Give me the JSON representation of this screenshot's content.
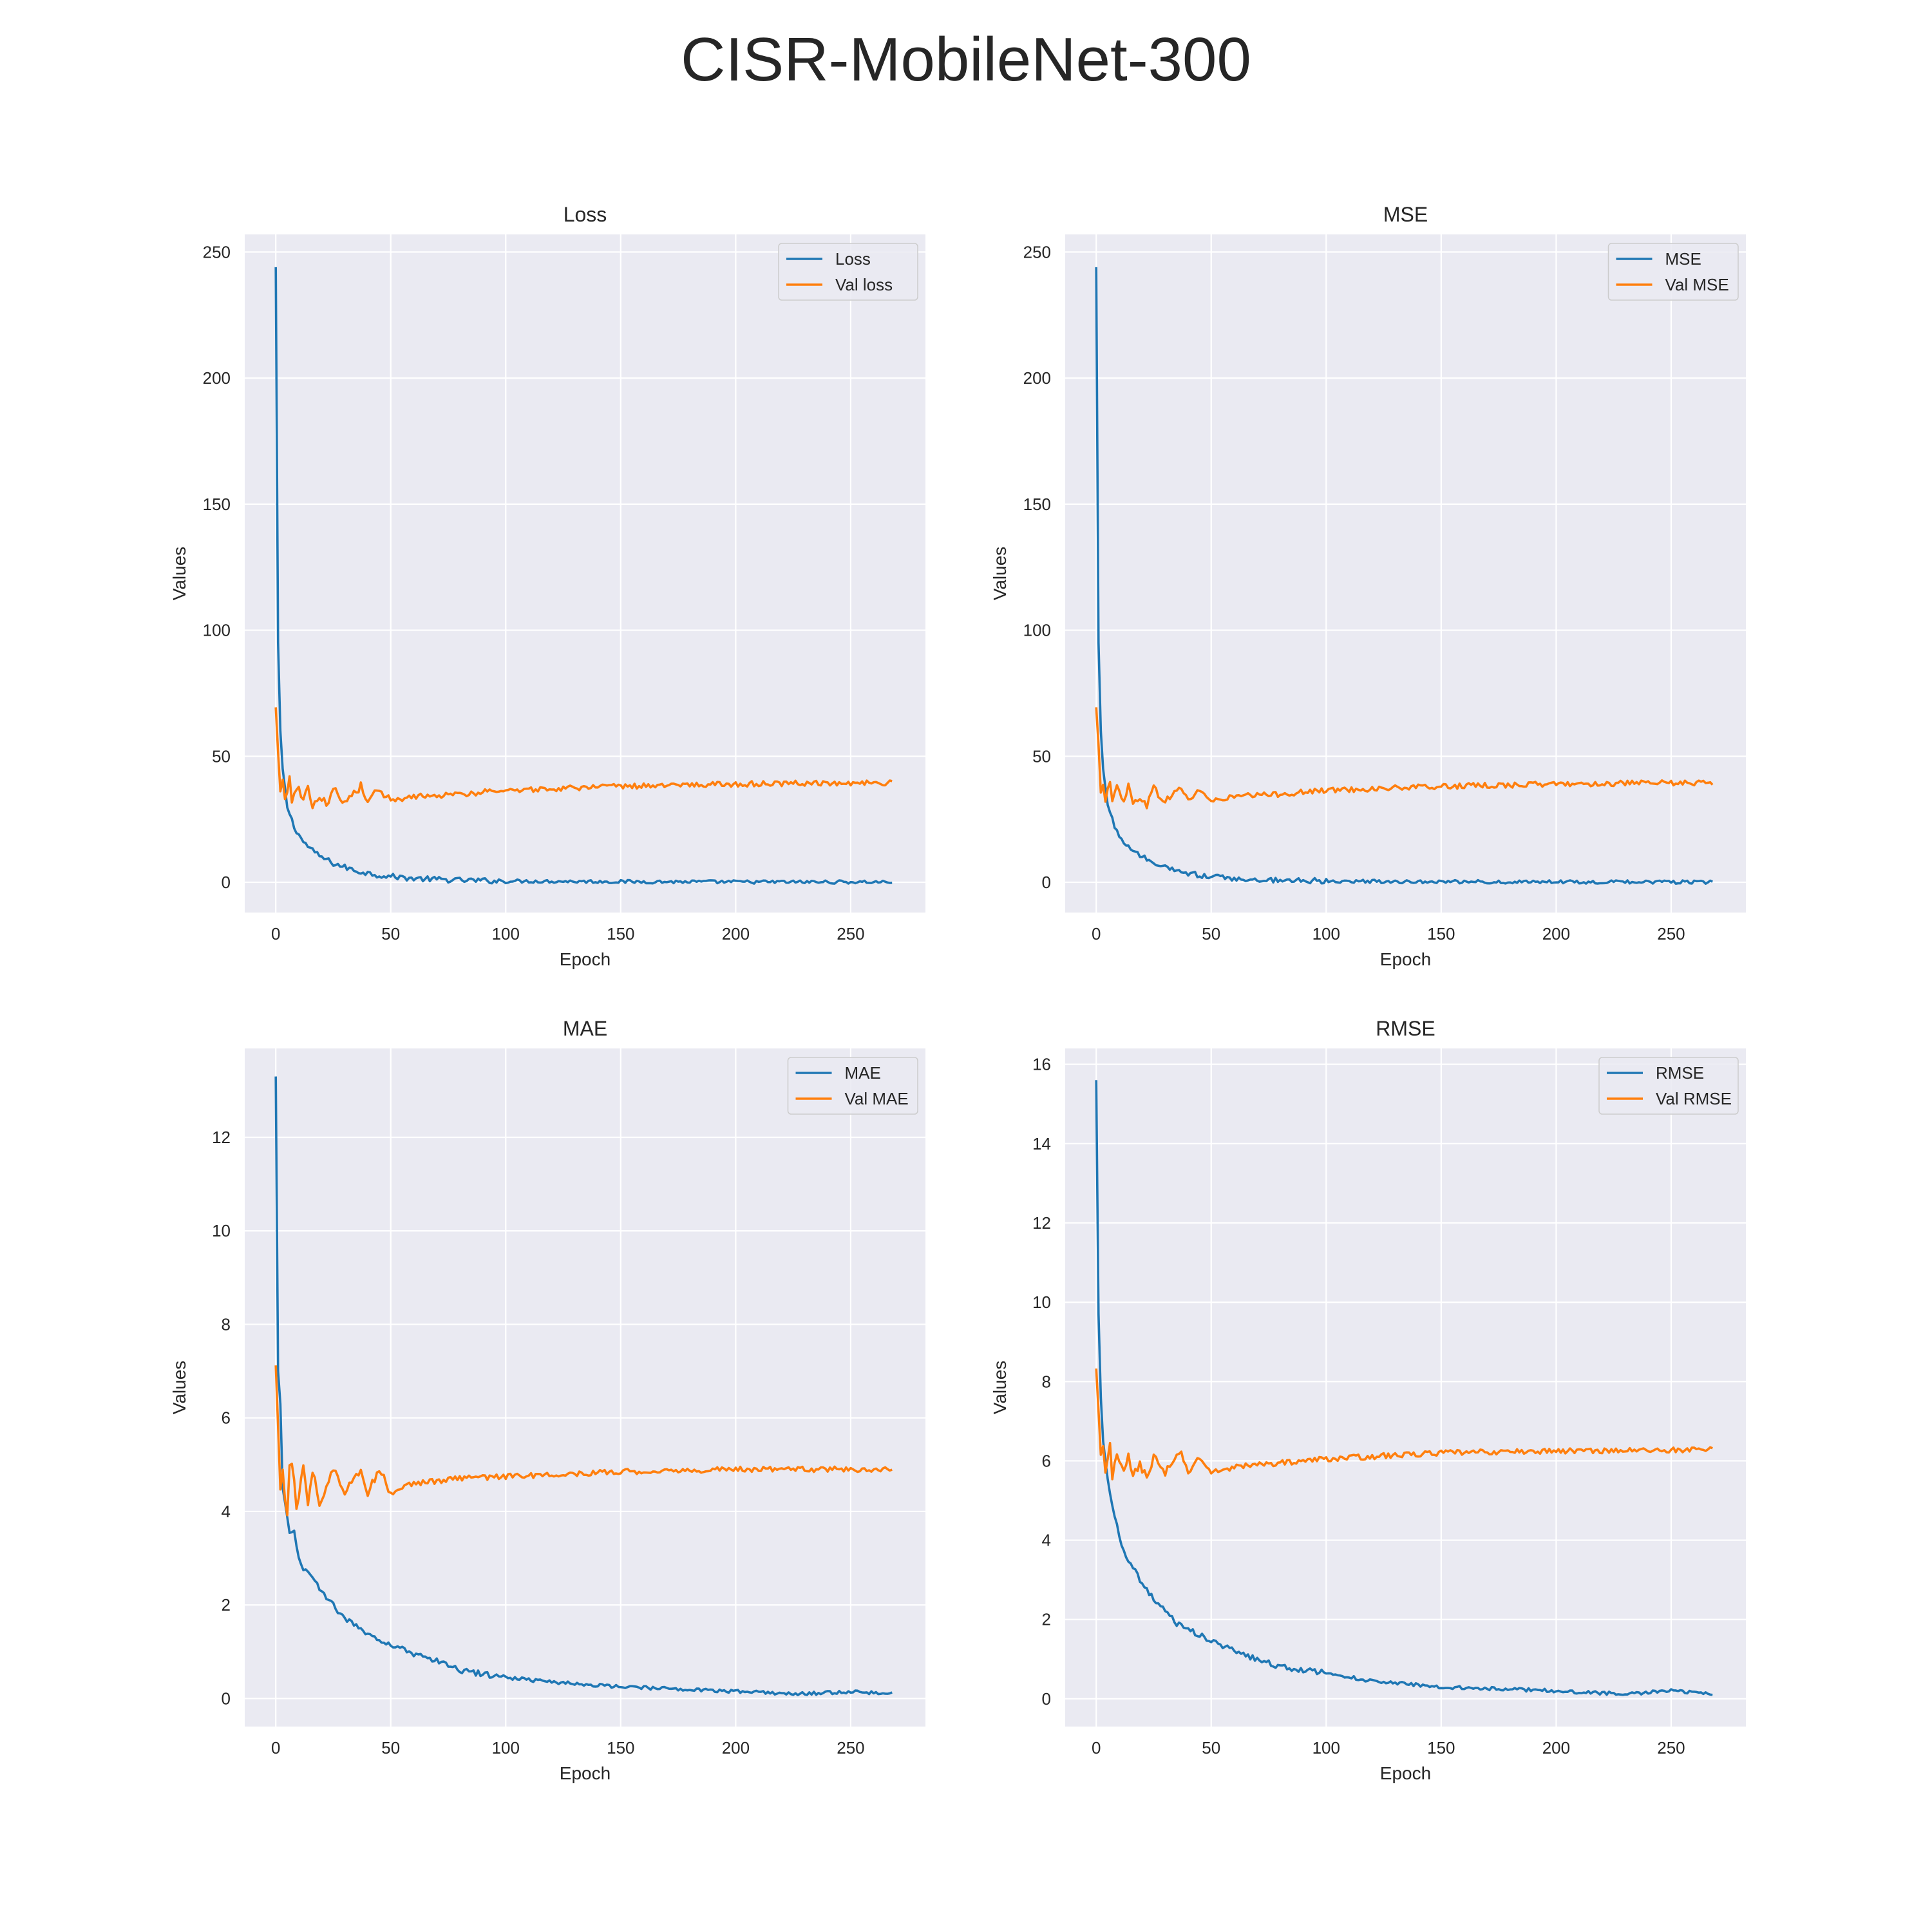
{
  "figure": {
    "title": "CISR-MobileNet-300"
  },
  "chart_data": [
    {
      "type": "line",
      "title": "Loss",
      "xlabel": "Epoch",
      "ylabel": "Values",
      "xlim": [
        -13.5,
        282.5
      ],
      "ylim": [
        -12,
        257
      ],
      "xticks": [
        0,
        50,
        100,
        150,
        200,
        250
      ],
      "yticks": [
        0,
        50,
        100,
        150,
        200,
        250
      ],
      "tick_labels_y": [
        "0",
        "50",
        "100",
        "150",
        "200",
        "250"
      ],
      "grid": true,
      "legend_position": "top-right",
      "series": [
        {
          "name": "Loss",
          "color": "#1f77b4",
          "x_start": 0,
          "x_end": 268,
          "x": [
            0,
            1,
            2,
            3,
            5,
            8,
            12,
            18,
            25,
            35,
            45,
            60,
            80,
            100,
            150,
            200,
            268
          ],
          "y": [
            244,
            95,
            60,
            45,
            30,
            22,
            16,
            11,
            7.5,
            4.5,
            2.8,
            1.5,
            0.8,
            0.5,
            0.25,
            0.15,
            0.1
          ]
        },
        {
          "name": "Val loss",
          "color": "#ff7f0e",
          "x_start": 0,
          "x_end": 268,
          "x": [
            0,
            2,
            3,
            4,
            6,
            7,
            9,
            12,
            14,
            16,
            19,
            22,
            25,
            30,
            37,
            40,
            45,
            50,
            60,
            80,
            100,
            150,
            200,
            268
          ],
          "y": [
            69,
            37,
            40,
            33,
            41,
            31,
            38,
            33,
            38,
            31,
            34,
            31,
            37,
            32,
            38,
            32,
            37,
            32,
            34,
            35,
            36.5,
            38,
            39,
            39.5
          ]
        }
      ]
    },
    {
      "type": "line",
      "title": "MSE",
      "xlabel": "Epoch",
      "ylabel": "Values",
      "xlim": [
        -13.5,
        282.5
      ],
      "ylim": [
        -12,
        257
      ],
      "xticks": [
        0,
        50,
        100,
        150,
        200,
        250
      ],
      "yticks": [
        0,
        50,
        100,
        150,
        200,
        250
      ],
      "tick_labels_y": [
        "0",
        "50",
        "100",
        "150",
        "200",
        "250"
      ],
      "grid": true,
      "legend_position": "top-right",
      "series": [
        {
          "name": "MSE",
          "color": "#1f77b4",
          "x_start": 0,
          "x_end": 268,
          "x": [
            0,
            1,
            2,
            3,
            5,
            8,
            12,
            18,
            25,
            35,
            45,
            60,
            80,
            100,
            150,
            200,
            268
          ],
          "y": [
            244,
            95,
            60,
            45,
            30,
            22,
            16,
            11,
            7.5,
            4.5,
            2.8,
            1.5,
            0.8,
            0.5,
            0.25,
            0.15,
            0.1
          ]
        },
        {
          "name": "Val MSE",
          "color": "#ff7f0e",
          "x_start": 0,
          "x_end": 268,
          "x": [
            0,
            2,
            3,
            4,
            6,
            7,
            9,
            12,
            14,
            16,
            19,
            22,
            25,
            30,
            37,
            40,
            45,
            50,
            60,
            80,
            100,
            150,
            200,
            268
          ],
          "y": [
            69,
            37,
            40,
            33,
            41,
            31,
            38,
            33,
            38,
            31,
            34,
            31,
            37,
            32,
            38,
            32,
            37,
            32,
            34,
            35,
            36.5,
            38,
            39,
            39.5
          ]
        }
      ]
    },
    {
      "type": "line",
      "title": "MAE",
      "xlabel": "Epoch",
      "ylabel": "Values",
      "xlim": [
        -13.5,
        282.5
      ],
      "ylim": [
        -0.6,
        13.9
      ],
      "xticks": [
        0,
        50,
        100,
        150,
        200,
        250
      ],
      "yticks": [
        0,
        2,
        4,
        6,
        8,
        10,
        12
      ],
      "tick_labels_y": [
        "0",
        "2",
        "4",
        "6",
        "8",
        "10",
        "12"
      ],
      "grid": true,
      "legend_position": "top-right",
      "series": [
        {
          "name": "MAE",
          "color": "#1f77b4",
          "x_start": 0,
          "x_end": 268,
          "x": [
            0,
            1,
            2,
            3,
            5,
            6,
            8,
            10,
            12,
            15,
            20,
            25,
            30,
            40,
            50,
            60,
            70,
            80,
            100,
            120,
            150,
            200,
            230,
            250,
            268
          ],
          "y": [
            13.3,
            7.0,
            6.3,
            4.5,
            3.9,
            3.6,
            3.6,
            3.0,
            2.8,
            2.6,
            2.3,
            2.0,
            1.7,
            1.4,
            1.15,
            0.95,
            0.8,
            0.6,
            0.45,
            0.35,
            0.25,
            0.15,
            0.1,
            0.15,
            0.1
          ]
        },
        {
          "name": "Val MAE",
          "color": "#ff7f0e",
          "x_start": 0,
          "x_end": 268,
          "x": [
            0,
            2,
            3,
            4,
            5,
            6,
            7,
            9,
            12,
            14,
            16,
            19,
            22,
            25,
            30,
            37,
            40,
            45,
            50,
            60,
            80,
            100,
            150,
            200,
            268
          ],
          "y": [
            7.1,
            4.4,
            4.9,
            4.2,
            4.0,
            5.0,
            5.1,
            4.1,
            4.9,
            4.2,
            4.9,
            4.2,
            4.5,
            4.9,
            4.4,
            4.9,
            4.4,
            4.9,
            4.4,
            4.6,
            4.7,
            4.75,
            4.85,
            4.9,
            4.9
          ]
        }
      ]
    },
    {
      "type": "line",
      "title": "RMSE",
      "xlabel": "Epoch",
      "ylabel": "Values",
      "xlim": [
        -13.5,
        282.5
      ],
      "ylim": [
        -0.7,
        16.4
      ],
      "xticks": [
        0,
        50,
        100,
        150,
        200,
        250
      ],
      "yticks": [
        0,
        2,
        4,
        6,
        8,
        10,
        12,
        14,
        16
      ],
      "tick_labels_y": [
        "0",
        "2",
        "4",
        "6",
        "8",
        "10",
        "12",
        "14",
        "16"
      ],
      "grid": true,
      "legend_position": "top-right",
      "series": [
        {
          "name": "RMSE",
          "color": "#1f77b4",
          "x_start": 0,
          "x_end": 268,
          "x": [
            0,
            1,
            2,
            3,
            5,
            8,
            12,
            18,
            25,
            35,
            45,
            60,
            70,
            80,
            100,
            120,
            150,
            200,
            230,
            250,
            268
          ],
          "y": [
            15.6,
            9.7,
            7.6,
            6.5,
            5.5,
            4.6,
            3.7,
            3.1,
            2.5,
            1.9,
            1.6,
            1.2,
            1.0,
            0.8,
            0.65,
            0.45,
            0.3,
            0.2,
            0.12,
            0.2,
            0.12
          ]
        },
        {
          "name": "Val RMSE",
          "color": "#ff7f0e",
          "x_start": 0,
          "x_end": 268,
          "x": [
            0,
            2,
            3,
            4,
            6,
            7,
            9,
            12,
            14,
            16,
            19,
            22,
            25,
            30,
            37,
            40,
            45,
            50,
            60,
            80,
            100,
            150,
            200,
            268
          ],
          "y": [
            8.3,
            6.1,
            6.3,
            5.7,
            6.4,
            5.6,
            6.1,
            5.7,
            6.2,
            5.6,
            5.9,
            5.6,
            6.1,
            5.7,
            6.2,
            5.7,
            6.1,
            5.7,
            5.85,
            5.95,
            6.05,
            6.2,
            6.25,
            6.28
          ]
        }
      ]
    }
  ]
}
